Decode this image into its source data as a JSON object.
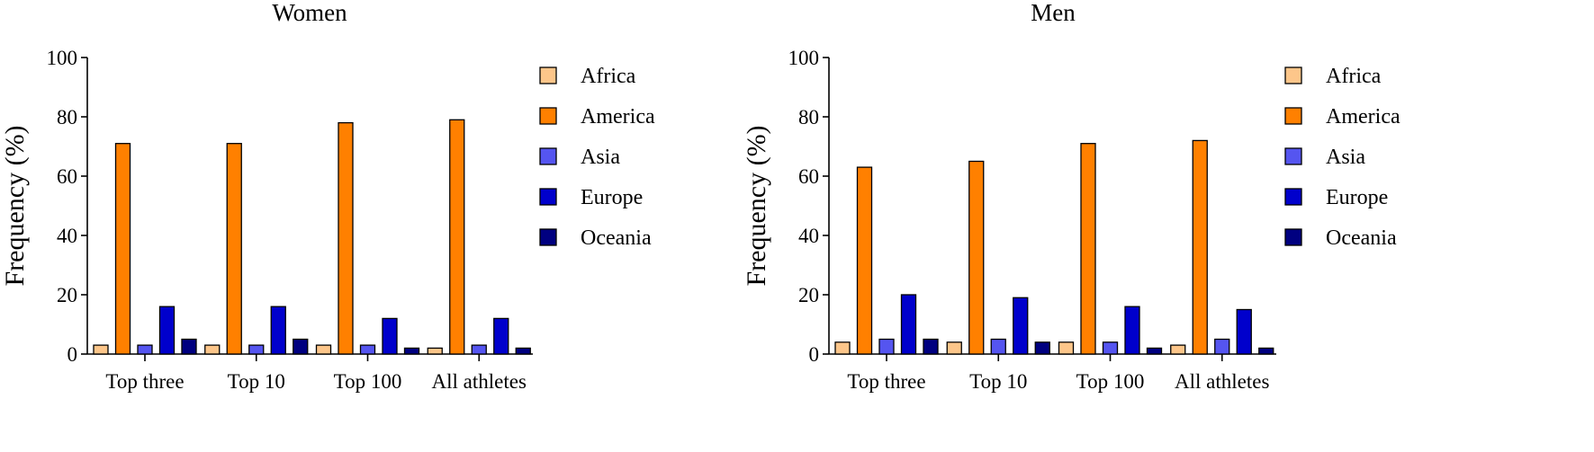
{
  "chart_data": [
    {
      "type": "bar",
      "title": "Women",
      "xlabel": "",
      "ylabel": "Frequency (%)",
      "ylim": [
        0,
        100
      ],
      "yticks": [
        "0",
        "20",
        "40",
        "60",
        "80",
        "100"
      ],
      "grid": false,
      "legend_position": "right",
      "categories": [
        "Top three",
        "Top 10",
        "Top 100",
        "All athletes"
      ],
      "series": [
        {
          "name": "Africa",
          "color": "#FDC68A",
          "values": [
            3,
            3,
            3,
            2
          ]
        },
        {
          "name": "America",
          "color": "#FF8000",
          "values": [
            71,
            71,
            78,
            79
          ]
        },
        {
          "name": "Asia",
          "color": "#5555F0",
          "values": [
            3,
            3,
            3,
            3
          ]
        },
        {
          "name": "Europe",
          "color": "#0000CC",
          "values": [
            16,
            16,
            12,
            12
          ]
        },
        {
          "name": "Oceania",
          "color": "#000080",
          "values": [
            5,
            5,
            2,
            2
          ]
        }
      ]
    },
    {
      "type": "bar",
      "title": "Men",
      "xlabel": "",
      "ylabel": "Frequency (%)",
      "ylim": [
        0,
        100
      ],
      "yticks": [
        "0",
        "20",
        "40",
        "60",
        "80",
        "100"
      ],
      "grid": false,
      "legend_position": "right",
      "categories": [
        "Top three",
        "Top 10",
        "Top 100",
        "All athletes"
      ],
      "series": [
        {
          "name": "Africa",
          "color": "#FDC68A",
          "values": [
            4,
            4,
            4,
            3
          ]
        },
        {
          "name": "America",
          "color": "#FF8000",
          "values": [
            63,
            65,
            71,
            72
          ]
        },
        {
          "name": "Asia",
          "color": "#5555F0",
          "values": [
            5,
            5,
            4,
            5
          ]
        },
        {
          "name": "Europe",
          "color": "#0000CC",
          "values": [
            20,
            19,
            16,
            15
          ]
        },
        {
          "name": "Oceania",
          "color": "#000080",
          "values": [
            5,
            4,
            2,
            2
          ]
        }
      ]
    }
  ]
}
